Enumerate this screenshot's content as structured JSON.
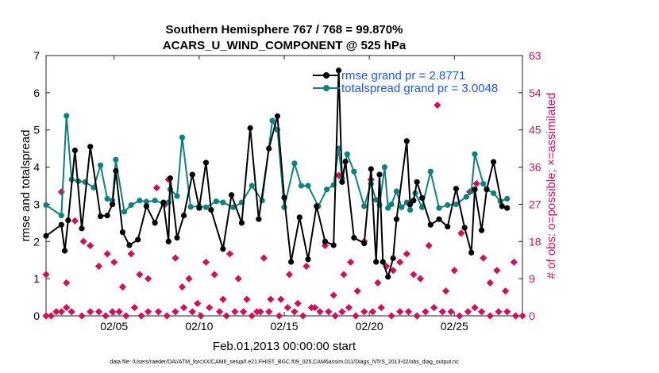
{
  "chart_data": {
    "type": "line",
    "title": "Southern Hemisphere 767 / 768 = 99.870%",
    "subtitle": "ACARS_U_WIND_COMPONENT @ 525 hPa",
    "xlabel": "Feb.01,2013 00:00:00 start",
    "ylabel": "rmse and totalspread",
    "ylabel_right": "# of obs: o=possible; ×=assimilated",
    "footer": "data file: /Users/raeder/DAI/ATM_forcXX/CAM6_setup/f.e21.FHIST_BGC.f09_025.CAM6assim.011/Diags_NTrS_2013-02/obs_diag_output.nc",
    "xlim": [
      1,
      29
    ],
    "ylim": [
      0,
      7
    ],
    "ylim_right": [
      0,
      63
    ],
    "xticks": [
      5,
      10,
      15,
      20,
      25
    ],
    "xtick_labels": [
      "02/05",
      "02/10",
      "02/15",
      "02/20",
      "02/25"
    ],
    "yticks": [
      "0",
      "1",
      "2",
      "3",
      "4",
      "5",
      "6",
      "7"
    ],
    "yticks_right": [
      "0",
      "9",
      "18",
      "27",
      "36",
      "45",
      "54",
      "63"
    ],
    "colors": {
      "rmse": "#000000",
      "totalspread": "#0e8080",
      "obs": "#d0105a",
      "legend_text": "#1f5ae0"
    },
    "series": [
      {
        "name": "rmse",
        "legend": "rmse grand pr = 2.8771",
        "x": [
          1.0,
          1.9,
          2.1,
          2.3,
          2.7,
          3.1,
          3.6,
          4.2,
          4.6,
          4.9,
          5.1,
          5.5,
          5.9,
          6.4,
          6.9,
          7.4,
          7.9,
          8.2,
          8.3,
          8.7,
          9.1,
          9.6,
          10.0,
          10.4,
          10.7,
          11.4,
          11.9,
          12.5,
          13.0,
          13.5,
          14.1,
          14.6,
          15.0,
          15.4,
          15.9,
          16.4,
          16.9,
          17.4,
          17.9,
          18.2,
          18.4,
          18.6,
          19.1,
          19.7,
          20.1,
          20.4,
          20.6,
          20.8,
          21.1,
          21.4,
          21.6,
          22.2,
          22.4,
          22.6,
          22.8,
          23.1,
          23.6,
          24.1,
          24.6,
          25.1,
          25.6,
          26.0,
          26.2,
          26.6,
          26.9,
          27.3,
          27.8,
          28.1
        ],
        "y": [
          2.15,
          2.45,
          1.75,
          2.57,
          4.45,
          2.35,
          4.55,
          2.68,
          2.7,
          3.0,
          3.9,
          2.25,
          1.9,
          2.05,
          2.95,
          2.5,
          3.05,
          2.0,
          3.7,
          2.1,
          2.7,
          3.8,
          2.9,
          4.12,
          2.85,
          1.8,
          3.25,
          2.5,
          5.05,
          2.6,
          4.5,
          5.37,
          3.18,
          1.45,
          2.65,
          1.52,
          2.95,
          2.0,
          1.9,
          6.6,
          3.6,
          4.15,
          2.1,
          1.95,
          3.95,
          1.45,
          3.8,
          1.45,
          1.05,
          1.55,
          2.6,
          4.7,
          3.0,
          3.1,
          3.6,
          3.17,
          2.45,
          2.6,
          2.4,
          3.42,
          2.37,
          1.7,
          3.4,
          2.3,
          3.4,
          4.14,
          2.95,
          2.9
        ]
      },
      {
        "name": "totalspread",
        "legend": "totalspread grand pr = 3.0048",
        "x": [
          1.0,
          1.9,
          2.2,
          2.5,
          2.9,
          3.3,
          3.8,
          4.2,
          4.6,
          4.9,
          5.1,
          5.6,
          6.0,
          6.5,
          6.9,
          7.4,
          7.9,
          8.2,
          8.3,
          8.7,
          9.0,
          9.5,
          10.0,
          10.4,
          11.0,
          11.4,
          12.0,
          12.5,
          13.1,
          13.7,
          14.3,
          14.6,
          15.0,
          15.6,
          16.0,
          16.4,
          17.0,
          17.5,
          17.9,
          18.2,
          18.4,
          18.7,
          19.1,
          19.7,
          20.1,
          20.4,
          20.6,
          20.9,
          21.1,
          21.3,
          21.6,
          21.9,
          22.2,
          22.4,
          22.7,
          23.1,
          23.6,
          24.1,
          24.6,
          25.1,
          25.7,
          26.0,
          26.2,
          26.7,
          26.9,
          27.3,
          27.7,
          28.1
        ],
        "y": [
          2.98,
          2.7,
          5.38,
          3.67,
          3.62,
          3.6,
          3.45,
          4.05,
          3.15,
          3.1,
          4.2,
          2.8,
          2.98,
          3.1,
          3.07,
          3.1,
          3.02,
          3.05,
          3.4,
          3.22,
          4.8,
          2.93,
          2.95,
          2.92,
          3.08,
          3.05,
          2.92,
          3.05,
          3.5,
          3.1,
          5.25,
          5.0,
          2.92,
          4.1,
          3.5,
          3.5,
          2.95,
          3.4,
          3.52,
          4.5,
          3.7,
          4.35,
          3.88,
          2.95,
          3.55,
          3.12,
          2.98,
          4.0,
          2.9,
          3.0,
          3.35,
          2.92,
          3.05,
          2.85,
          3.3,
          2.92,
          3.88,
          2.9,
          2.98,
          3.0,
          3.2,
          3.35,
          4.35,
          3.55,
          3.4,
          3.3,
          3.08,
          3.15
        ]
      },
      {
        "name": "possible",
        "x": [
          1.0,
          1.9,
          2.2,
          2.7,
          3.2,
          3.6,
          4.1,
          4.6,
          5.0,
          5.5,
          6.0,
          6.5,
          7.0,
          7.5,
          8.0,
          8.2,
          8.6,
          9.0,
          9.4,
          9.9,
          10.4,
          10.9,
          11.4,
          11.8,
          12.3,
          12.8,
          13.4,
          13.8,
          14.2,
          14.8,
          15.3,
          15.8,
          16.3,
          16.8,
          17.4,
          17.9,
          18.2,
          18.5,
          18.9,
          19.3,
          19.7,
          20.1,
          20.5,
          21.0,
          21.4,
          21.8,
          22.2,
          22.6,
          23.0,
          23.5,
          24.0,
          24.5,
          25.0,
          25.4,
          25.9,
          26.3,
          26.7,
          27.1,
          27.5,
          28.0,
          28.5
        ],
        "y": [
          10,
          30,
          8,
          23,
          18,
          17,
          12,
          15,
          13,
          7,
          15,
          10,
          9,
          31,
          27,
          33,
          14,
          7,
          9,
          3,
          13,
          10,
          4,
          15,
          9,
          4,
          1,
          14,
          4,
          4,
          10,
          3,
          12,
          2,
          17,
          5,
          34,
          10,
          13,
          6,
          18,
          33,
          8,
          12,
          11,
          13,
          15,
          10,
          9,
          17,
          51,
          6,
          11,
          20,
          30,
          32,
          14,
          8,
          11,
          6,
          13
        ]
      },
      {
        "name": "assimilated",
        "x": [
          1.0,
          1.3,
          1.6,
          1.9,
          2.2,
          2.5,
          3.1,
          3.6,
          4.1,
          4.5,
          4.9,
          5.3,
          5.7,
          6.2,
          6.6,
          7.0,
          7.6,
          8.1,
          8.6,
          9.1,
          9.6,
          10.1,
          10.6,
          11.2,
          11.6,
          12.1,
          12.6,
          13.1,
          13.6,
          14.1,
          14.7,
          15.2,
          15.6,
          16.1,
          16.6,
          17.1,
          17.6,
          18.0,
          18.4,
          18.8,
          19.2,
          19.7,
          20.2,
          20.7,
          21.3,
          21.8,
          22.3,
          22.8,
          23.3,
          23.8,
          24.3,
          24.8,
          25.3,
          25.8,
          26.2,
          26.6,
          27.1,
          27.6,
          28.1,
          28.6,
          29.0
        ],
        "y": [
          0,
          0,
          1,
          1,
          2,
          1,
          0,
          1,
          1,
          0,
          1,
          1,
          0,
          2,
          0,
          1,
          1,
          0,
          1,
          2,
          1,
          0,
          2,
          1,
          0,
          1,
          1,
          0,
          1,
          1,
          0,
          2,
          1,
          0,
          2,
          1,
          1,
          0,
          1,
          2,
          0,
          1,
          1,
          2,
          0,
          1,
          1,
          0,
          1,
          2,
          1,
          1,
          0,
          1,
          2,
          1,
          0,
          1,
          1,
          0,
          0
        ]
      }
    ]
  }
}
